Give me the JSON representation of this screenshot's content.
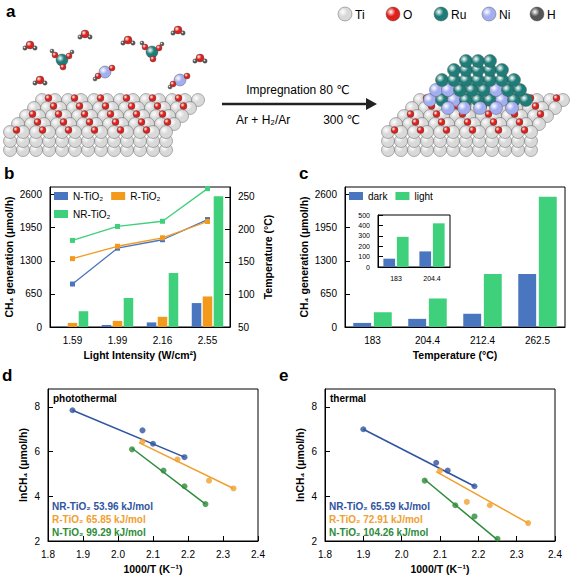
{
  "diagram": {
    "panel": "a",
    "legend": [
      {
        "label": "Ti",
        "color": "#d9d9d9"
      },
      {
        "label": "O",
        "color": "#e0201b"
      },
      {
        "label": "Ru",
        "color": "#1e7d78"
      },
      {
        "label": "Ni",
        "color": "#a3aef0"
      },
      {
        "label": "H",
        "color": "#555555"
      }
    ],
    "step": {
      "above": "Impregnation 80 ℃",
      "below": [
        "Ar + H₂/Ar",
        "300 ℃"
      ]
    }
  },
  "chart_data": [
    {
      "panel": "b",
      "type": "bar",
      "categories": [
        "1.59",
        "1.99",
        "2.16",
        "2.55"
      ],
      "x_label": "Light Intensity (W/cm²)",
      "y_label": "CH₄ generation (μmol/h)",
      "y2_label": "Temperature (°C)",
      "ylim": [
        0,
        2750
      ],
      "yticks": [
        0,
        650,
        1300,
        1950,
        2600
      ],
      "y2lim": [
        50,
        265
      ],
      "y2ticks": [
        50,
        100,
        150,
        200,
        250
      ],
      "legend": "upper left",
      "series": [
        {
          "name": "N-TiO₂",
          "color": "#4a76c0",
          "values": [
            10,
            40,
            90,
            470
          ]
        },
        {
          "name": "R-TiO₂",
          "color": "#f39a1c",
          "values": [
            80,
            120,
            200,
            600
          ]
        },
        {
          "name": "NR-TiO₂",
          "color": "#3fd07c",
          "values": [
            310,
            570,
            1060,
            2570
          ]
        },
        {
          "name": "N-TiO₂",
          "type": "line",
          "axis": "y2",
          "marker": "square",
          "color": "#4a76c0",
          "values": [
            116,
            171,
            184,
            215
          ]
        },
        {
          "name": "R-TiO₂",
          "type": "line",
          "axis": "y2",
          "marker": "square",
          "color": "#f39a1c",
          "values": [
            155,
            174,
            187,
            212
          ]
        },
        {
          "name": "NR-TiO₂",
          "type": "line",
          "axis": "y2",
          "marker": "square",
          "color": "#3fd07c",
          "values": [
            183,
            204.4,
            212.4,
            262.5
          ]
        }
      ]
    },
    {
      "panel": "c",
      "type": "bar",
      "categories": [
        "183",
        "204.4",
        "212.4",
        "262.5"
      ],
      "x_label": "Temperature (°C)",
      "y_label": "CH₄ generation (μmol/h)",
      "ylim": [
        0,
        2750
      ],
      "yticks": [
        0,
        650,
        1300,
        1950,
        2600
      ],
      "legend": "upper left",
      "series": [
        {
          "name": "dark",
          "color": "#4a76c0",
          "values": [
            80,
            160,
            260,
            1040
          ]
        },
        {
          "name": "light",
          "color": "#3fd07c",
          "values": [
            290,
            560,
            1040,
            2560
          ]
        }
      ]
    },
    {
      "type": "bar",
      "categories": [
        "183",
        "204.4"
      ],
      "ylim": [
        0,
        500
      ],
      "yticks": [
        0,
        100,
        200,
        300,
        400,
        500
      ],
      "series": [
        {
          "color": "#4a76c0",
          "values": [
            80,
            150
          ]
        },
        {
          "color": "#3fd07c",
          "values": [
            290,
            420
          ]
        }
      ]
    },
    {
      "panel": "d",
      "type": "scatter",
      "title": "photothermal",
      "x_label": "1000/T (K⁻¹)",
      "y_label": "lnCH₄ (μmol/h)",
      "xlim": [
        1.8,
        2.4
      ],
      "xticks": [
        1.8,
        1.9,
        {
          "value": 2,
          "label": "2.0"
        },
        2.1,
        2.2,
        2.3,
        2.4
      ],
      "ylim": [
        2,
        8.8
      ],
      "yticks": [
        2,
        4,
        6,
        8
      ],
      "series": [
        {
          "annotation": "NR-TiO₂ 53.96 kJ/mol",
          "color": "#2f54a0",
          "marker": "circle",
          "x": [
            1.87,
            2.07,
            2.1,
            2.19
          ],
          "values": [
            7.85,
            6.95,
            6.35,
            5.75
          ],
          "fit": {
            "x": [
              1.87,
              2.19
            ],
            "values": [
              7.85,
              5.75
            ]
          }
        },
        {
          "annotation": "R-TiO₂ 65.85 kJ/mol",
          "color": "#f0a030",
          "marker": "circle",
          "x": [
            2.07,
            2.17,
            2.26,
            2.33
          ],
          "values": [
            6.45,
            5.65,
            4.7,
            4.35
          ],
          "fit": {
            "x": [
              2.06,
              2.33
            ],
            "values": [
              6.4,
              4.35
            ]
          }
        },
        {
          "annotation": "N-TiO₂ 99.29 kJ/mol",
          "color": "#2e8b3a",
          "marker": "circle",
          "x": [
            2.04,
            2.13,
            2.19,
            2.25
          ],
          "values": [
            6.1,
            5.15,
            4.45,
            3.65
          ],
          "fit": {
            "x": [
              2.04,
              2.25
            ],
            "values": [
              6.15,
              3.65
            ]
          }
        }
      ]
    },
    {
      "panel": "e",
      "type": "scatter",
      "title": "thermal",
      "x_label": "1000/T (K⁻¹)",
      "y_label": "lnCH₄ (μmol/h)",
      "xlim": [
        1.8,
        2.4
      ],
      "xticks": [
        1.8,
        1.9,
        {
          "value": 2,
          "label": "2.0"
        },
        2.1,
        2.2,
        2.3,
        2.4
      ],
      "ylim": [
        2,
        8.8
      ],
      "yticks": [
        2,
        4,
        6,
        8
      ],
      "series": [
        {
          "annotation": "NR-TiO₂ 65.59 kJ/mol",
          "color": "#2f54a0",
          "marker": "circle",
          "x": [
            1.9,
            2.09,
            2.12,
            2.19
          ],
          "values": [
            7.0,
            5.5,
            5.15,
            4.45
          ],
          "fit": {
            "x": [
              1.9,
              2.19
            ],
            "values": [
              7.0,
              4.45
            ]
          }
        },
        {
          "annotation": "R-TiO₂ 72.91 kJ/mol",
          "color": "#f0a030",
          "marker": "circle",
          "x": [
            2.1,
            2.17,
            2.23,
            2.33
          ],
          "values": [
            5.15,
            3.75,
            3.6,
            2.8
          ],
          "fit": {
            "x": [
              2.09,
              2.33
            ],
            "values": [
              5.1,
              2.8
            ]
          }
        },
        {
          "annotation": "N-TiO₂ 104.26 kJ/mol",
          "color": "#2e8b3a",
          "marker": "circle",
          "x": [
            2.06,
            2.14,
            2.19,
            2.25
          ],
          "values": [
            4.7,
            3.6,
            3.1,
            2.1
          ],
          "fit": {
            "x": [
              2.06,
              2.25
            ],
            "values": [
              4.75,
              2.05
            ]
          }
        }
      ]
    }
  ]
}
